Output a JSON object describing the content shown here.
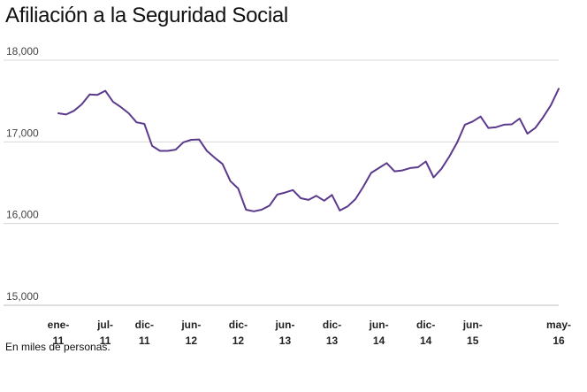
{
  "title": "Afiliación a la Seguridad Social",
  "note": "En miles de personas.",
  "chart_data": {
    "type": "line",
    "title": "Afiliación a la Seguridad Social",
    "ylabel": "",
    "xlabel": "",
    "ylim": [
      15000,
      18000
    ],
    "yticks": [
      15000,
      16000,
      17000,
      18000
    ],
    "ytick_labels": [
      "15,000",
      "16,000",
      "17,000",
      "18,000"
    ],
    "xtick_labels": [
      {
        "line1": "ene-",
        "line2": "11",
        "index": 0
      },
      {
        "line1": "jul-",
        "line2": "11",
        "index": 6
      },
      {
        "line1": "dic-",
        "line2": "11",
        "index": 11
      },
      {
        "line1": "jun-",
        "line2": "12",
        "index": 17
      },
      {
        "line1": "dic-",
        "line2": "12",
        "index": 23
      },
      {
        "line1": "jun-",
        "line2": "13",
        "index": 29
      },
      {
        "line1": "dic-",
        "line2": "13",
        "index": 35
      },
      {
        "line1": "jun-",
        "line2": "14",
        "index": 41
      },
      {
        "line1": "dic-",
        "line2": "14",
        "index": 47
      },
      {
        "line1": "jun-",
        "line2": "15",
        "index": 53
      },
      {
        "line1": "may-",
        "line2": "16",
        "index": 64
      }
    ],
    "grid": true,
    "line_color": "#5b3a8c",
    "series": [
      {
        "values": [
          17350,
          17335,
          17380,
          17460,
          17580,
          17575,
          17625,
          17490,
          17425,
          17350,
          17240,
          17220,
          16950,
          16890,
          16890,
          16905,
          16995,
          17025,
          17030,
          16890,
          16805,
          16730,
          16520,
          16430,
          16170,
          16150,
          16170,
          16220,
          16355,
          16380,
          16410,
          16310,
          16290,
          16340,
          16280,
          16350,
          16160,
          16210,
          16300,
          16450,
          16620,
          16680,
          16740,
          16640,
          16650,
          16680,
          16690,
          16760,
          16565,
          16670,
          16820,
          16990,
          17210,
          17250,
          17310,
          17170,
          17180,
          17210,
          17215,
          17285,
          17100,
          17170,
          17300,
          17450,
          17650
        ]
      }
    ]
  }
}
